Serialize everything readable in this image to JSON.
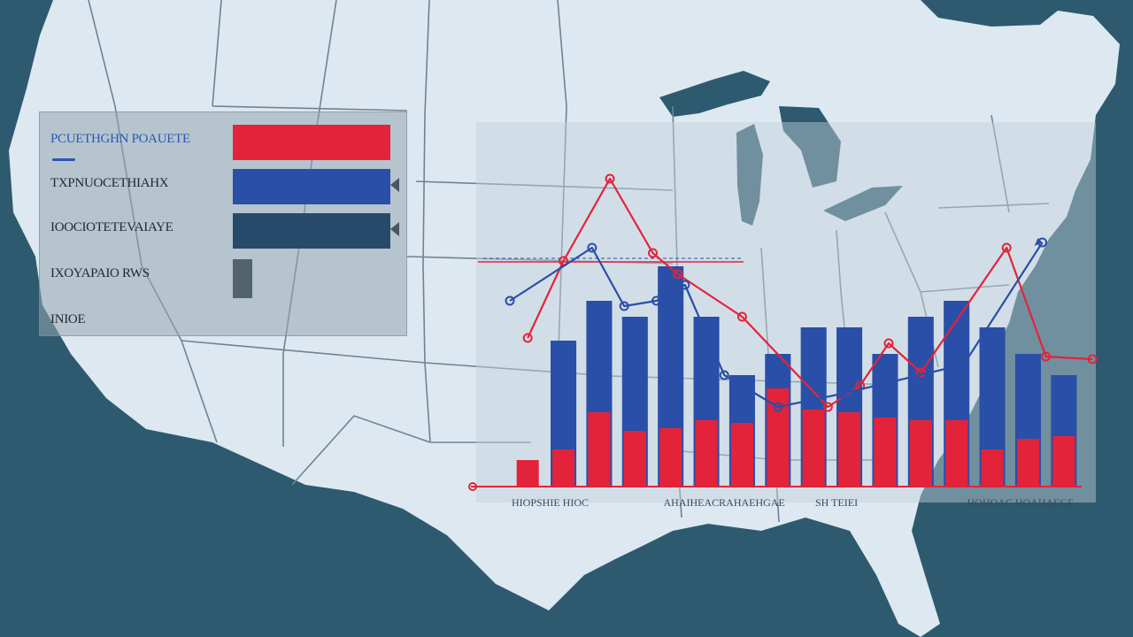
{
  "colors": {
    "ocean": "#2d5a6e",
    "land": "#dde8f1",
    "border": "#6d8494",
    "red": "#e3233a",
    "blue": "#2a4fa8",
    "navy": "#284a6a",
    "slate": "#52636e"
  },
  "legend": [
    {
      "label": "PCUETHGHN POAUETE",
      "swatch": "red"
    },
    {
      "label": "TXPNUOCETHIAHX",
      "swatch": "blue"
    },
    {
      "label": "IOOCIOTETEVAIAYE",
      "swatch": "navy"
    },
    {
      "label": "IXOYAPAIO RWS",
      "swatch": "slate"
    },
    {
      "label": "INIOE",
      "swatch": null
    }
  ],
  "x_axis_labels": [
    "HIOPSHIE HIOC",
    "AHAIHEACRAHAEHGAE",
    "SH TEIEI",
    "HOHOAC HOAHAEGE"
  ],
  "chart_data": {
    "type": "bar",
    "categories": [
      "",
      "",
      "",
      "",
      "",
      "",
      "",
      "",
      "",
      "",
      "",
      "",
      "",
      "",
      "",
      ""
    ],
    "series": [
      {
        "values": [
          0,
          5.5,
          7.0,
          6.4,
          8.3,
          6.4,
          4.2,
          5.0,
          6.0,
          6.0,
          5.0,
          6.4,
          7.0,
          6.0,
          5.0,
          4.2
        ]
      },
      {
        "values": [
          1.0,
          1.4,
          2.8,
          2.1,
          2.2,
          2.5,
          2.4,
          3.7,
          2.9,
          2.8,
          2.6,
          2.5,
          2.5,
          1.4,
          1.8,
          1.9
        ]
      }
    ],
    "lines": [
      {
        "color": "red",
        "points": [
          [
            0,
            5.6
          ],
          [
            1,
            8.5
          ],
          [
            2.3,
            11.6
          ],
          [
            3.5,
            8.8
          ],
          [
            4.2,
            8.0
          ],
          [
            6.0,
            6.4
          ],
          [
            8.4,
            3.0
          ],
          [
            9.3,
            3.8
          ],
          [
            10.1,
            5.4
          ],
          [
            11.0,
            4.3
          ],
          [
            13.4,
            9.0
          ],
          [
            14.5,
            4.9
          ],
          [
            15.8,
            4.8
          ]
        ]
      },
      {
        "color": "blue",
        "points": [
          [
            -0.5,
            7.0
          ],
          [
            1.8,
            9.0
          ],
          [
            2.7,
            6.8
          ],
          [
            3.6,
            7.0
          ],
          [
            4.4,
            7.6
          ],
          [
            5.5,
            4.2
          ],
          [
            7.0,
            3.0
          ],
          [
            8.8,
            3.5
          ],
          [
            12.2,
            4.6
          ],
          [
            14.4,
            9.2
          ]
        ]
      }
    ]
  }
}
